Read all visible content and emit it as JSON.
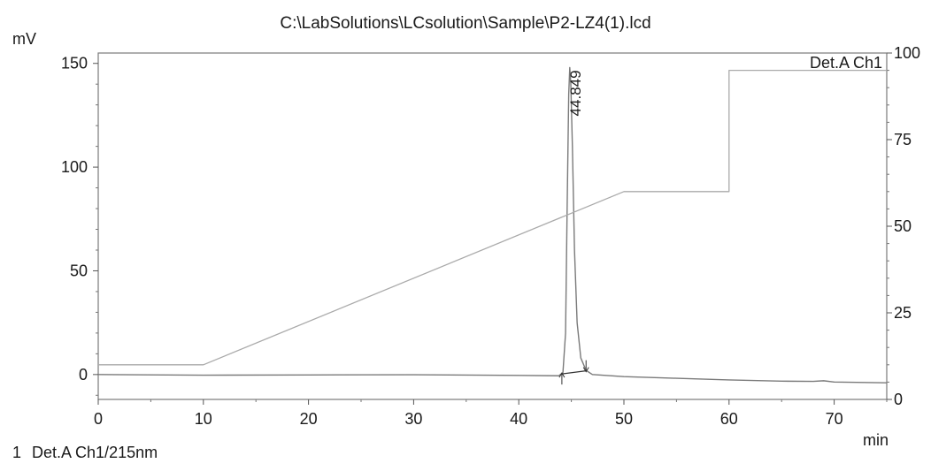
{
  "chart_data": {
    "type": "line",
    "title": "C:\\LabSolutions\\LCsolution\\Sample\\P2-LZ4(1).lcd",
    "xlabel": "min",
    "ylabel": "mV",
    "xlim": [
      0,
      75
    ],
    "ylim": [
      -12,
      155
    ],
    "y2lim": [
      0,
      100
    ],
    "x_ticks": [
      "0",
      "10",
      "20",
      "30",
      "40",
      "50",
      "60",
      "70"
    ],
    "y_ticks": [
      "0",
      "50",
      "100",
      "150"
    ],
    "y2_ticks": [
      "0",
      "25",
      "50",
      "75",
      "100"
    ],
    "legend_label": "Det.A Ch1",
    "footnote_index": "1",
    "footnote_text": "Det.A Ch1/215nm",
    "peak": {
      "label": "44.849",
      "time": 44.849,
      "height": 148
    },
    "series": [
      {
        "name": "Det.A Ch1",
        "axis": "left",
        "color": "#7a7a7a",
        "points": [
          [
            0,
            0
          ],
          [
            10,
            -0.3
          ],
          [
            20,
            -0.2
          ],
          [
            30,
            -0.1
          ],
          [
            40,
            -0.4
          ],
          [
            43.8,
            -0.6
          ],
          [
            44.2,
            1
          ],
          [
            44.45,
            20
          ],
          [
            44.6,
            80
          ],
          [
            44.75,
            135
          ],
          [
            44.85,
            148
          ],
          [
            44.95,
            140
          ],
          [
            45.1,
            110
          ],
          [
            45.3,
            60
          ],
          [
            45.55,
            25
          ],
          [
            45.9,
            8
          ],
          [
            46.4,
            2
          ],
          [
            47,
            0
          ],
          [
            50,
            -1
          ],
          [
            55,
            -1.8
          ],
          [
            60,
            -2.6
          ],
          [
            65,
            -3.2
          ],
          [
            68,
            -3.3
          ],
          [
            69,
            -3.0
          ],
          [
            70,
            -3.6
          ],
          [
            75,
            -4
          ]
        ]
      },
      {
        "name": "Gradient",
        "axis": "right",
        "color": "#aaaaaa",
        "points": [
          [
            0,
            10
          ],
          [
            10,
            10
          ],
          [
            50,
            60
          ],
          [
            60,
            60
          ],
          [
            60,
            95
          ],
          [
            75,
            95
          ]
        ]
      }
    ],
    "integration_baseline": {
      "start": [
        44.1,
        0.3
      ],
      "end": [
        46.4,
        1.8
      ]
    },
    "grid": false
  }
}
